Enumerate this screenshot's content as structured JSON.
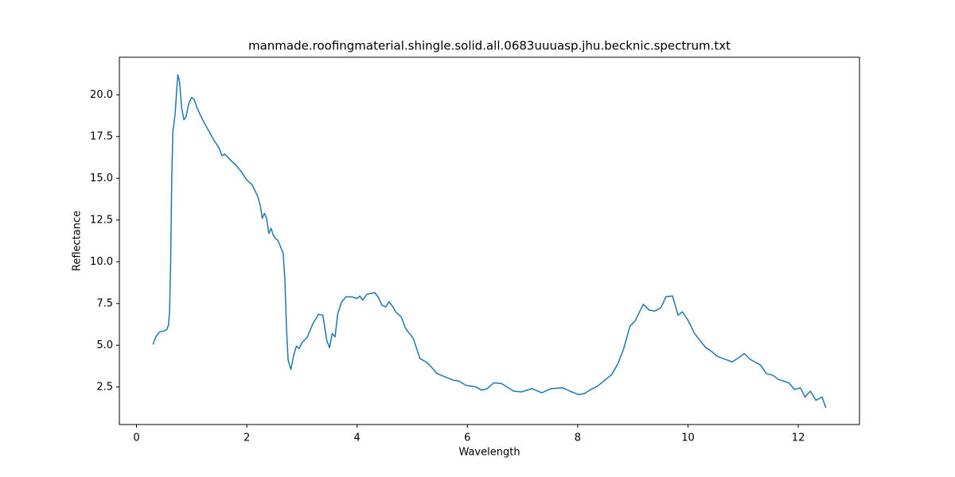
{
  "chart_data": {
    "type": "line",
    "title": "manmade.roofingmaterial.shingle.solid.all.0683uuuasp.jhu.becknic.spectrum.txt",
    "x_label": "Wavelength",
    "y_label": "Reflectance",
    "xlim": [
      -0.31,
      13.11
    ],
    "ylim": [
      0.25,
      22.25
    ],
    "xticks": [
      0,
      2,
      4,
      6,
      8,
      10,
      12
    ],
    "yticks": [
      2.5,
      {
        "value": 5.0,
        "label": "5.0"
      },
      7.5,
      {
        "value": 10.0,
        "label": "10.0"
      },
      12.5,
      {
        "value": 15.0,
        "label": "15.0"
      },
      17.5,
      {
        "value": 20.0,
        "label": "20.0"
      }
    ],
    "color": "#1f77b4",
    "x": [
      0.3,
      0.35,
      0.42,
      0.5,
      0.55,
      0.58,
      0.6,
      0.62,
      0.64,
      0.66,
      0.7,
      0.73,
      0.75,
      0.78,
      0.82,
      0.86,
      0.9,
      0.95,
      1.0,
      1.05,
      1.1,
      1.2,
      1.3,
      1.4,
      1.5,
      1.55,
      1.6,
      1.7,
      1.8,
      1.9,
      2.0,
      2.1,
      2.2,
      2.25,
      2.28,
      2.32,
      2.36,
      2.4,
      2.44,
      2.48,
      2.52,
      2.56,
      2.6,
      2.66,
      2.69,
      2.72,
      2.75,
      2.8,
      2.85,
      2.9,
      2.95,
      3.0,
      3.1,
      3.2,
      3.3,
      3.38,
      3.45,
      3.5,
      3.55,
      3.6,
      3.65,
      3.72,
      3.8,
      3.9,
      4.0,
      4.05,
      4.1,
      4.18,
      4.25,
      4.32,
      4.38,
      4.45,
      4.52,
      4.58,
      4.65,
      4.7,
      4.8,
      4.88,
      4.95,
      5.02,
      5.08,
      5.14,
      5.25,
      5.32,
      5.45,
      5.6,
      5.75,
      5.85,
      5.97,
      6.16,
      6.26,
      6.36,
      6.48,
      6.62,
      6.84,
      6.98,
      7.17,
      7.35,
      7.52,
      7.73,
      7.86,
      8.01,
      8.12,
      8.24,
      8.36,
      8.62,
      8.73,
      8.83,
      8.95,
      9.04,
      9.19,
      9.3,
      9.4,
      9.51,
      9.6,
      9.72,
      9.82,
      9.9,
      10.0,
      10.12,
      10.31,
      10.44,
      10.52,
      10.68,
      10.8,
      10.92,
      11.02,
      11.13,
      11.32,
      11.42,
      11.54,
      11.64,
      11.83,
      11.93,
      12.04,
      12.12,
      12.22,
      12.32,
      12.43,
      12.5
    ],
    "values": [
      5.05,
      5.5,
      5.8,
      5.85,
      5.95,
      6.2,
      7.0,
      10,
      15,
      17.8,
      18.8,
      20.3,
      21.2,
      20.8,
      19.2,
      18.5,
      18.7,
      19.5,
      19.85,
      19.7,
      19.2,
      18.5,
      17.9,
      17.3,
      16.8,
      16.35,
      16.45,
      16.1,
      15.8,
      15.4,
      14.9,
      14.6,
      13.9,
      13.3,
      12.6,
      12.9,
      12.6,
      11.7,
      12.0,
      11.6,
      11.4,
      11.3,
      11.0,
      10.5,
      9.0,
      6.0,
      4.1,
      3.55,
      4.4,
      4.95,
      4.8,
      5.15,
      5.5,
      6.3,
      6.85,
      6.8,
      5.3,
      4.85,
      5.7,
      5.5,
      6.9,
      7.6,
      7.9,
      7.9,
      7.8,
      7.95,
      7.7,
      8.05,
      8.1,
      8.15,
      7.9,
      7.4,
      7.3,
      7.6,
      7.3,
      7.0,
      6.7,
      6.0,
      5.7,
      5.4,
      4.8,
      4.2,
      4.0,
      3.8,
      3.3,
      3.1,
      2.9,
      2.85,
      2.6,
      2.5,
      2.3,
      2.4,
      2.75,
      2.7,
      2.25,
      2.2,
      2.4,
      2.15,
      2.4,
      2.45,
      2.25,
      2.05,
      2.1,
      2.35,
      2.55,
      3.25,
      3.9,
      4.75,
      6.15,
      6.45,
      7.45,
      7.1,
      7.05,
      7.25,
      7.9,
      7.95,
      6.8,
      7.0,
      6.5,
      5.7,
      4.9,
      4.6,
      4.35,
      4.15,
      4.0,
      4.25,
      4.5,
      4.15,
      3.8,
      3.3,
      3.2,
      2.95,
      2.75,
      2.35,
      2.45,
      1.9,
      2.25,
      1.7,
      1.9,
      1.25
    ]
  }
}
